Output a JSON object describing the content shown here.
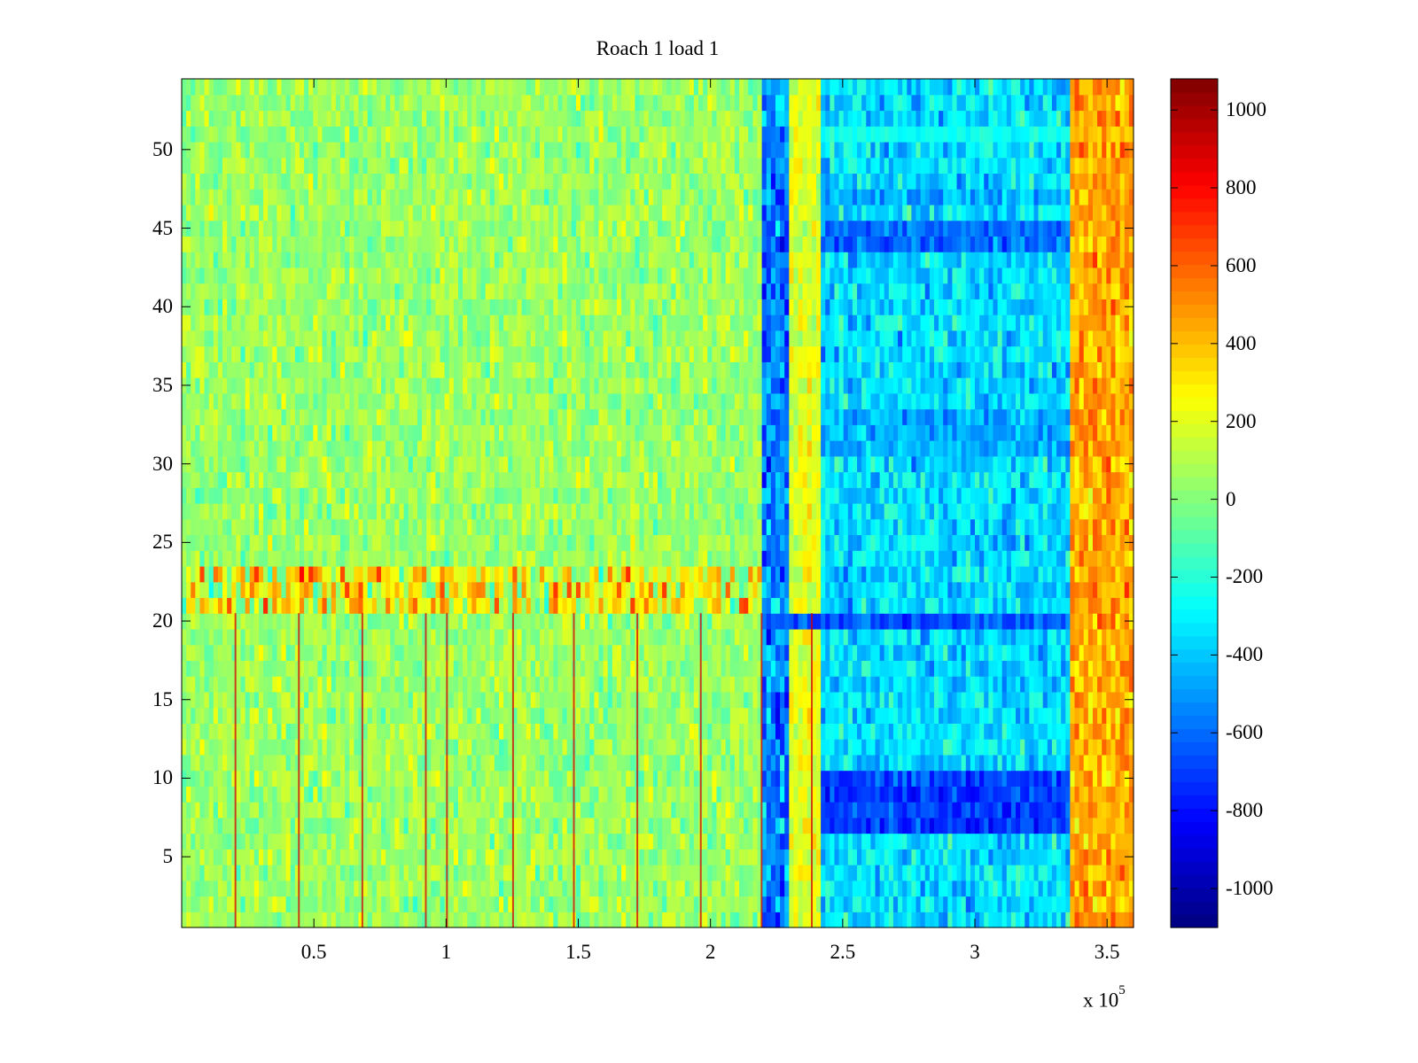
{
  "chart_data": {
    "type": "heatmap",
    "title": "Roach 1 load 1",
    "xlabel": "",
    "ylabel": "",
    "x_multiplier": {
      "base": "x 10",
      "exponent": "5"
    },
    "x_ticks": [
      0.5,
      1,
      1.5,
      2,
      2.5,
      3,
      3.5
    ],
    "x_tick_labels": [
      "0.5",
      "1",
      "1.5",
      "2",
      "2.5",
      "3",
      "3.5"
    ],
    "xlim": [
      0,
      3.6
    ],
    "y_ticks": [
      5,
      10,
      15,
      20,
      25,
      30,
      35,
      40,
      45,
      50
    ],
    "y_tick_labels": [
      "5",
      "10",
      "15",
      "20",
      "25",
      "30",
      "35",
      "40",
      "45",
      "50"
    ],
    "ylim": [
      0.5,
      54.5
    ],
    "rows": 54,
    "colorbar": {
      "ticks": [
        1000,
        800,
        600,
        400,
        200,
        0,
        -200,
        -400,
        -600,
        -800,
        -1000
      ],
      "tick_labels": [
        "1000",
        "800",
        "600",
        "400",
        "200",
        "0",
        "-200",
        "-400",
        "-600",
        "-800",
        "-1000"
      ],
      "clim": [
        -1100,
        1080
      ],
      "colormap": "jet"
    },
    "regions_x_units_1e5": [
      {
        "x": [
          0.0,
          2.19
        ],
        "mean": 50,
        "spread": 120,
        "note": "mostly green-yellow"
      },
      {
        "x": [
          2.19,
          2.29
        ],
        "mean": -550,
        "spread": 200
      },
      {
        "x": [
          2.29,
          2.41
        ],
        "mean": 200,
        "spread": 120
      },
      {
        "x": [
          2.41,
          3.36
        ],
        "mean": -350,
        "spread": 160
      },
      {
        "x": [
          3.36,
          3.6
        ],
        "mean": 450,
        "spread": 150
      }
    ],
    "row_band_values": [
      {
        "rows": [
          21,
          23
        ],
        "x": [
          0.0,
          2.19
        ],
        "mean": 250,
        "spread": 300
      },
      {
        "rows": [
          7,
          10
        ],
        "x": [
          2.41,
          3.36
        ],
        "mean": -700,
        "spread": 120
      },
      {
        "rows": [
          20,
          20
        ],
        "x": [
          2.19,
          3.36
        ],
        "mean": -650,
        "spread": 120
      },
      {
        "rows": [
          31,
          33
        ],
        "x": [
          2.41,
          3.36
        ],
        "mean": -450,
        "spread": 120
      },
      {
        "rows": [
          44,
          45
        ],
        "x": [
          2.41,
          3.36
        ],
        "mean": -600,
        "spread": 120
      },
      {
        "rows": [
          47,
          47
        ],
        "x": [
          2.41,
          3.36
        ],
        "mean": -450,
        "spread": 120
      },
      {
        "rows": [
          51,
          51
        ],
        "x": [
          2.41,
          3.36
        ],
        "mean": -250,
        "spread": 60
      }
    ],
    "vertical_spikes_x_1e5": [
      0.2,
      0.44,
      0.68,
      0.92,
      1.0,
      1.25,
      1.48,
      1.72,
      1.96,
      2.19,
      2.38
    ],
    "spike_value": 900
  }
}
